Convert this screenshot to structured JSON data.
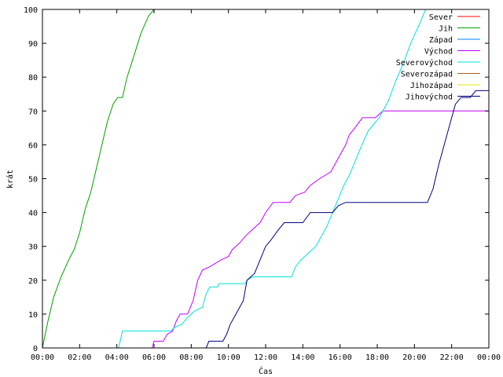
{
  "chart_data": {
    "type": "line",
    "title": "",
    "xlabel": "Čas",
    "ylabel": "krát",
    "xlim": [
      0,
      24
    ],
    "ylim": [
      0,
      100
    ],
    "grid": false,
    "legend_position": "top-right",
    "x_ticks": [
      {
        "value": 0,
        "label": "00:00"
      },
      {
        "value": 2,
        "label": "02:00"
      },
      {
        "value": 4,
        "label": "04:00"
      },
      {
        "value": 6,
        "label": "06:00"
      },
      {
        "value": 8,
        "label": "08:00"
      },
      {
        "value": 10,
        "label": "10:00"
      },
      {
        "value": 12,
        "label": "12:00"
      },
      {
        "value": 14,
        "label": "14:00"
      },
      {
        "value": 16,
        "label": "16:00"
      },
      {
        "value": 18,
        "label": "18:00"
      },
      {
        "value": 20,
        "label": "20:00"
      },
      {
        "value": 22,
        "label": "22:00"
      },
      {
        "value": 24,
        "label": "00:00"
      }
    ],
    "y_ticks": [
      0,
      10,
      20,
      30,
      40,
      50,
      60,
      70,
      80,
      90,
      100
    ],
    "series": [
      {
        "name": "Sever",
        "color": "#ff0000",
        "points": []
      },
      {
        "name": "Jih",
        "color": "#00a000",
        "points": [
          [
            0,
            0
          ],
          [
            0.3,
            8
          ],
          [
            0.6,
            15
          ],
          [
            1.0,
            21
          ],
          [
            1.5,
            27
          ],
          [
            1.7,
            29
          ],
          [
            2.0,
            34
          ],
          [
            2.3,
            41
          ],
          [
            2.6,
            46
          ],
          [
            2.9,
            53
          ],
          [
            3.2,
            60
          ],
          [
            3.5,
            67
          ],
          [
            3.8,
            72
          ],
          [
            4.05,
            74
          ],
          [
            4.3,
            74
          ],
          [
            4.55,
            80
          ],
          [
            4.9,
            86
          ],
          [
            5.3,
            93
          ],
          [
            5.7,
            98
          ],
          [
            6.0,
            100
          ]
        ]
      },
      {
        "name": "Západ",
        "color": "#0080ff",
        "points": []
      },
      {
        "name": "Východ",
        "color": "#c000ff",
        "points": [
          [
            5.9,
            0
          ],
          [
            6.0,
            2
          ],
          [
            6.5,
            2
          ],
          [
            6.7,
            4
          ],
          [
            7.0,
            5
          ],
          [
            7.2,
            8
          ],
          [
            7.4,
            10
          ],
          [
            7.8,
            10
          ],
          [
            8.1,
            14
          ],
          [
            8.35,
            20
          ],
          [
            8.6,
            23
          ],
          [
            9.0,
            24
          ],
          [
            9.6,
            26
          ],
          [
            10.0,
            27
          ],
          [
            10.2,
            29
          ],
          [
            10.6,
            31
          ],
          [
            10.9,
            33
          ],
          [
            11.3,
            35
          ],
          [
            11.7,
            37
          ],
          [
            12.0,
            40
          ],
          [
            12.4,
            43
          ],
          [
            13.3,
            43
          ],
          [
            13.6,
            45
          ],
          [
            14.1,
            46
          ],
          [
            14.4,
            48
          ],
          [
            14.9,
            50
          ],
          [
            15.5,
            52
          ],
          [
            15.9,
            56
          ],
          [
            16.3,
            60
          ],
          [
            16.5,
            63
          ],
          [
            16.8,
            65
          ],
          [
            17.2,
            68
          ],
          [
            17.9,
            68
          ],
          [
            18.3,
            70
          ],
          [
            24.0,
            70
          ]
        ]
      },
      {
        "name": "Severovýchod",
        "color": "#00e0e0",
        "points": [
          [
            4.1,
            0
          ],
          [
            4.3,
            5
          ],
          [
            6.9,
            5
          ],
          [
            7.1,
            6
          ],
          [
            7.5,
            7
          ],
          [
            7.8,
            9
          ],
          [
            8.2,
            11
          ],
          [
            8.6,
            12
          ],
          [
            8.8,
            16
          ],
          [
            9.0,
            18
          ],
          [
            9.4,
            18
          ],
          [
            9.5,
            19
          ],
          [
            10.9,
            19
          ],
          [
            11.0,
            20
          ],
          [
            11.3,
            21
          ],
          [
            13.4,
            21
          ],
          [
            13.6,
            24
          ],
          [
            13.9,
            26
          ],
          [
            14.3,
            28
          ],
          [
            14.7,
            30
          ],
          [
            14.9,
            32
          ],
          [
            15.3,
            36
          ],
          [
            15.6,
            40
          ],
          [
            15.9,
            44
          ],
          [
            16.2,
            48
          ],
          [
            16.5,
            51
          ],
          [
            16.8,
            55
          ],
          [
            17.1,
            59
          ],
          [
            17.5,
            64
          ],
          [
            17.8,
            66
          ],
          [
            18.1,
            68
          ],
          [
            18.6,
            73
          ],
          [
            19.0,
            79
          ],
          [
            19.4,
            84
          ],
          [
            19.8,
            90
          ],
          [
            20.3,
            96
          ],
          [
            20.6,
            100
          ]
        ]
      },
      {
        "name": "Severozápad",
        "color": "#b05a1e",
        "points": []
      },
      {
        "name": "Jihozápad",
        "color": "#e6e600",
        "points": []
      },
      {
        "name": "Jihovýchod",
        "color": "#00007f",
        "points": [
          [
            8.8,
            0
          ],
          [
            8.95,
            2
          ],
          [
            9.7,
            2
          ],
          [
            9.9,
            4
          ],
          [
            10.1,
            7
          ],
          [
            10.3,
            9
          ],
          [
            10.5,
            11
          ],
          [
            10.8,
            14
          ],
          [
            11.0,
            20
          ],
          [
            11.4,
            22
          ],
          [
            11.7,
            26
          ],
          [
            12.0,
            30
          ],
          [
            12.3,
            32
          ],
          [
            12.7,
            35
          ],
          [
            13.0,
            37
          ],
          [
            14.0,
            37
          ],
          [
            14.4,
            40
          ],
          [
            15.6,
            40
          ],
          [
            15.9,
            42
          ],
          [
            16.3,
            43
          ],
          [
            20.7,
            43
          ],
          [
            21.0,
            47
          ],
          [
            21.3,
            54
          ],
          [
            21.6,
            60
          ],
          [
            21.9,
            66
          ],
          [
            22.2,
            72
          ],
          [
            22.5,
            74
          ],
          [
            23.0,
            74
          ],
          [
            23.3,
            76
          ],
          [
            24.0,
            76
          ]
        ]
      }
    ]
  }
}
